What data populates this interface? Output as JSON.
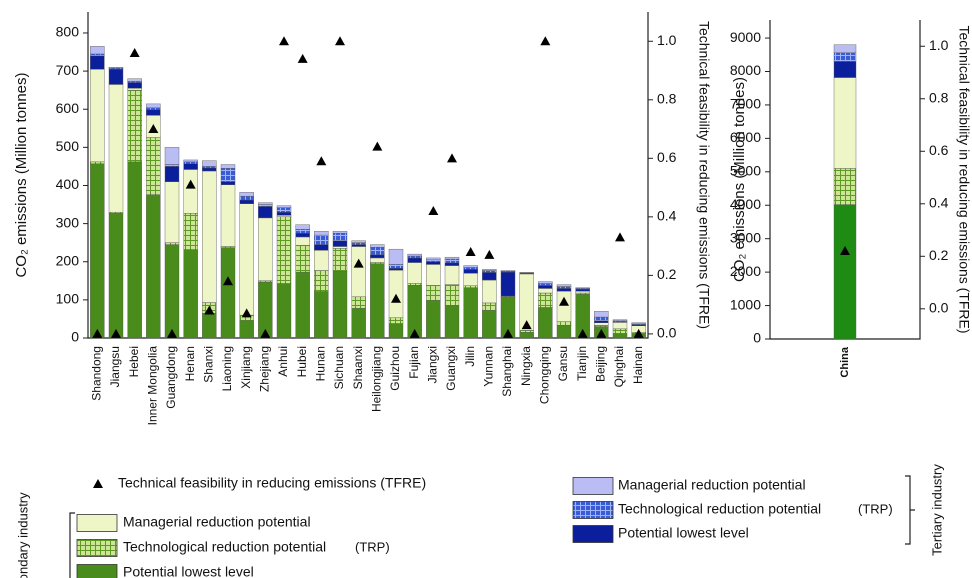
{
  "chart_data": [
    {
      "type": "bar",
      "ylabel": "CO₂ emissions (Million tonnes)",
      "y2label": "Technical  feasibility in reducing emissions (TFRE)",
      "categories": [
        "Shandong",
        "Jiangsu",
        "Hebei",
        "Inner Mongolia",
        "Guangdong",
        "Henan",
        "Shanxi",
        "Liaoning",
        "Xinjiang",
        "Zhejiang",
        "Anhui",
        "Hubei",
        "Hunan",
        "Sichuan",
        "Shaanxi",
        "Heilongjiang",
        "Guizhou",
        "Fujian",
        "Jiangxi",
        "Guangxi",
        "Jilin",
        "Yunnan",
        "Shanghai",
        "Ningxia",
        "Chongqing",
        "Gansu",
        "Tianjin",
        "Beijing",
        "Qinghai",
        "Hainan"
      ],
      "ylim": [
        0,
        855
      ],
      "yticks": [
        0,
        100,
        200,
        300,
        400,
        500,
        600,
        700,
        800
      ],
      "y2lim": [
        -0.014,
        1.1
      ],
      "y2ticks": [
        {
          "value": 0,
          "label": "0.0"
        },
        0.2,
        0.4,
        0.6,
        0.8,
        {
          "value": 1,
          "label": "1.0"
        }
      ],
      "series": [
        {
          "name": "Potential lowest level",
          "group": "Secondary industry",
          "color": "#4a8c1c",
          "values": [
            457,
            327,
            462,
            376,
            245,
            232,
            65,
            237,
            45,
            147,
            143,
            173,
            122,
            175,
            78,
            195,
            38,
            138,
            98,
            85,
            132,
            72,
            108,
            15,
            80,
            33,
            115,
            30,
            12,
            12
          ]
        },
        {
          "name": "Technological reduction potential",
          "note": "(TRP)",
          "group": "Secondary industry",
          "color": "#cde596",
          "pattern": "grid",
          "pattern_color": "#5c9a22",
          "values": [
            5,
            3,
            188,
            150,
            5,
            95,
            28,
            3,
            15,
            3,
            175,
            70,
            55,
            60,
            30,
            3,
            15,
            5,
            40,
            55,
            5,
            20,
            2,
            5,
            38,
            10,
            3,
            3,
            12,
            3
          ]
        },
        {
          "name": "Managerial reduction potential",
          "group": "Secondary industry",
          "color": "#eef5c6",
          "values": [
            243,
            335,
            5,
            58,
            160,
            115,
            345,
            162,
            292,
            165,
            4,
            22,
            53,
            5,
            132,
            12,
            125,
            55,
            55,
            50,
            33,
            60,
            0,
            148,
            12,
            80,
            5,
            7,
            17,
            17
          ]
        },
        {
          "name": "Potential lowest level",
          "group": "Tertiary industry",
          "color": "#0b1f9c",
          "values": [
            35,
            40,
            15,
            15,
            40,
            15,
            8,
            8,
            10,
            30,
            8,
            10,
            15,
            15,
            5,
            8,
            5,
            12,
            7,
            7,
            10,
            20,
            63,
            2,
            8,
            7,
            5,
            5,
            2,
            3
          ]
        },
        {
          "name": "Technological reduction potential",
          "note": "(TRP)",
          "group": "Tertiary industry",
          "color": "#3a5bd6",
          "pattern": "grid",
          "pattern_color": "#9fb4ff",
          "values": [
            5,
            3,
            3,
            5,
            5,
            5,
            4,
            35,
            10,
            5,
            12,
            10,
            25,
            20,
            5,
            20,
            10,
            5,
            5,
            10,
            5,
            5,
            2,
            1,
            5,
            5,
            2,
            10,
            2,
            2
          ]
        },
        {
          "name": "Managerial reduction potential",
          "group": "Tertiary industry",
          "color": "#b9bdf3",
          "values": [
            20,
            2,
            7,
            10,
            45,
            5,
            15,
            10,
            10,
            5,
            5,
            12,
            10,
            5,
            5,
            7,
            40,
            5,
            5,
            5,
            5,
            3,
            2,
            1,
            5,
            5,
            2,
            15,
            3,
            3
          ]
        },
        {
          "name": "Technical  feasibility in reducing emissions (TFRE)",
          "axis": "y2",
          "marker": "triangle",
          "color": "#000000",
          "values": [
            0,
            0,
            0.96,
            0.7,
            0,
            0.51,
            0.08,
            0.18,
            0.07,
            0,
            1,
            0.94,
            0.59,
            1,
            0.24,
            0.64,
            0.12,
            0,
            0.42,
            0.6,
            0.28,
            0.27,
            0,
            0.03,
            1,
            0.11,
            0,
            0,
            0.33,
            0
          ]
        }
      ]
    },
    {
      "type": "bar",
      "ylabel": "CO₂ emissions (Million tonnes)",
      "y2label": "Technical  feasibility in reducing emissions (TFRE)",
      "categories": [
        "China"
      ],
      "ylim": [
        0,
        9540
      ],
      "yticks": [
        0,
        1000,
        2000,
        3000,
        4000,
        5000,
        6000,
        7000,
        8000,
        9000
      ],
      "y2lim": [
        -0.115,
        1.1
      ],
      "y2ticks": [
        {
          "value": 0,
          "label": "0.0"
        },
        0.2,
        0.4,
        0.6,
        0.8,
        {
          "value": 1,
          "label": "1.0"
        }
      ],
      "series": [
        {
          "color": "#1e8c12",
          "values": [
            4020
          ]
        },
        {
          "color": "#cde596",
          "pattern": "grid",
          "pattern_color": "#5c9a22",
          "values": [
            1080
          ]
        },
        {
          "color": "#eef5c6",
          "values": [
            2720
          ]
        },
        {
          "color": "#0b1f9c",
          "values": [
            480
          ]
        },
        {
          "color": "#3a5bd6",
          "pattern": "grid",
          "pattern_color": "#9fb4ff",
          "values": [
            260
          ]
        },
        {
          "color": "#b9bdf3",
          "values": [
            240
          ]
        },
        {
          "axis": "y2",
          "marker": "triangle",
          "color": "#000000",
          "values": [
            0.22
          ]
        }
      ]
    }
  ]
}
